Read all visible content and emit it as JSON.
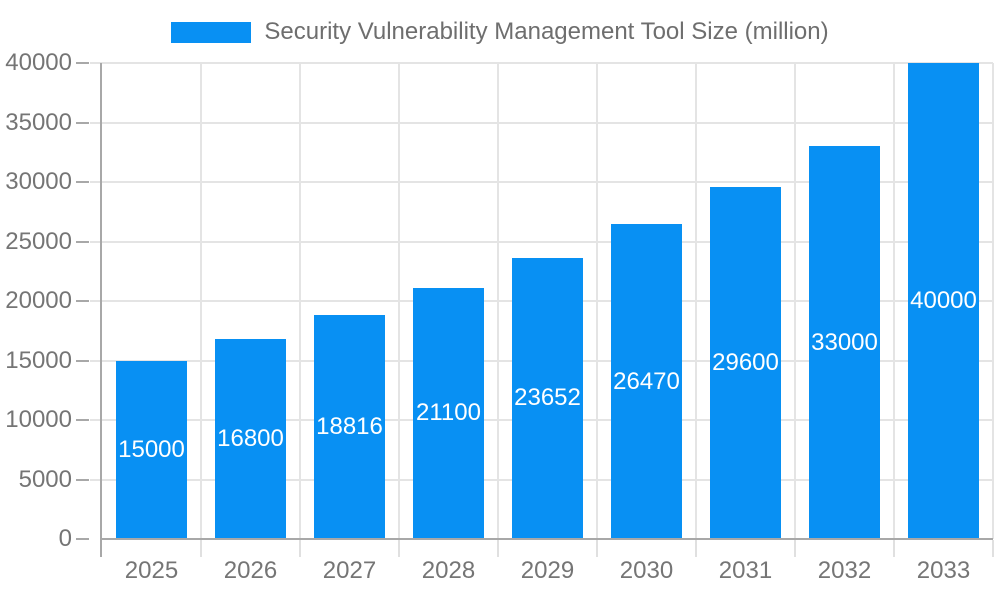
{
  "chart_data": {
    "type": "bar",
    "title": "Security Vulnerability Management Tool Size (million)",
    "legend": {
      "position": "top",
      "entries": [
        "Security Vulnerability Management Tool Size (million)"
      ]
    },
    "categories": [
      "2025",
      "2026",
      "2027",
      "2028",
      "2029",
      "2030",
      "2031",
      "2032",
      "2033"
    ],
    "values": [
      15000,
      16800,
      18816,
      21100,
      23652,
      26470,
      29600,
      33000,
      40000
    ],
    "bar_value_labels": [
      "15000",
      "16800",
      "18816",
      "21100",
      "23652",
      "26470",
      "29600",
      "33000",
      "40000"
    ],
    "xlabel": "",
    "ylabel": "",
    "ylim": [
      0,
      40000
    ],
    "yticks": [
      0,
      5000,
      10000,
      15000,
      20000,
      25000,
      30000,
      35000,
      40000
    ],
    "ytick_labels": [
      "0",
      "5000",
      "10000",
      "15000",
      "20000",
      "25000",
      "30000",
      "35000",
      "40000"
    ],
    "grid": true,
    "colors": {
      "bar": "#0890f3",
      "bar_label_text": "#ffffff",
      "title_text": "#6e6e6e",
      "tick_text": "#757575",
      "axis_line": "#a8a8a8",
      "grid_line": "#e4e4e4",
      "boundary_tick": "#e0e0e0",
      "background": "#ffffff"
    }
  }
}
